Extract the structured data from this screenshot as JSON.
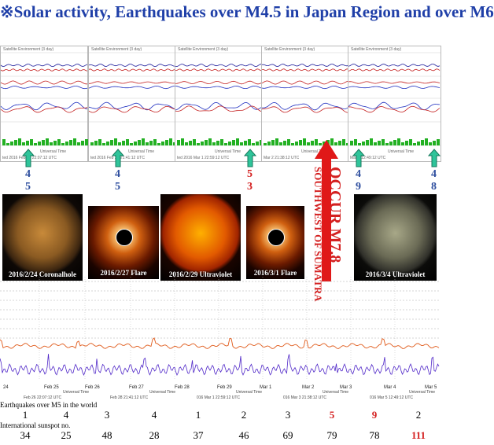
{
  "title": "※Solar activity, Earthquakes over M4.5 in Japan Region and over M6",
  "panels": [
    {
      "header": "Satellite Environment (3 day)",
      "footer": "ted 2016 Feb 24 22:07:12 UTC",
      "sub": "Universal Time"
    },
    {
      "header": "Satellite Environment (3 day)",
      "footer": "ted 2016 Feb 26 21:41:12 UTC",
      "sub": "Universal Time"
    },
    {
      "header": "Satellite Environment (3 day)",
      "footer": "ted 2016 Mar 1 22:59:12 UTC",
      "sub": "Universal Time"
    },
    {
      "header": "Satellite Environment (3 day)",
      "footer": "Mar 2 21:38:12 UTC",
      "sub": "Universal Time"
    },
    {
      "header": "Satellite Environment (3 day)",
      "footer": "Mar 5 12:49:12 UTC",
      "sub": "Universal Time"
    }
  ],
  "arrows": [
    {
      "top": "4",
      "bottom": "5",
      "top_red": false,
      "bottom_red": false
    },
    {
      "top": "4",
      "bottom": "5",
      "top_red": false,
      "bottom_red": false
    },
    {
      "top": "5",
      "bottom": "3",
      "top_red": true,
      "bottom_red": true
    },
    {
      "top": "4",
      "bottom": "9",
      "top_red": false,
      "bottom_red": false
    },
    {
      "top": "4",
      "bottom": "8",
      "top_red": false,
      "bottom_red": false
    }
  ],
  "thumbs": [
    {
      "caption": "2016/2/24 Coronalhole",
      "kind": "sun-gold"
    },
    {
      "caption": "2016/2/27 Flare",
      "kind": "flare"
    },
    {
      "caption": "2016/2/29 Ultraviolet",
      "kind": "sun-red"
    },
    {
      "caption": "2016/3/1 Flare",
      "kind": "flare"
    },
    {
      "caption": "2016/3/4 Ultraviolet",
      "kind": "sun-green"
    }
  ],
  "announcement": {
    "line1": "SOUTHWEST OF SUMATRA",
    "line2": "OCCUR M7.8"
  },
  "bottom_chart": {
    "dates": [
      "24",
      "Feb 25",
      "Feb 26",
      "Feb 27",
      "Feb 28",
      "Feb 29",
      "Mar 1",
      "Mar 2",
      "Mar 3",
      "Mar 4",
      "Mar 5"
    ],
    "axis_label": "Universal Time",
    "updates": [
      "Feb 26 22:07:12 UTC",
      "Feb 28 21:41:12 UTC",
      "016 Mar 1 22:59:12 UTC",
      "016 Mar 3 21:38:12 UTC",
      "016 Mar 5 12:49:12 UTC"
    ]
  },
  "earthquakes": {
    "label": "Earthquakes over M5 in the world",
    "values": [
      "1",
      "4",
      "3",
      "4",
      "1",
      "2",
      "3",
      "5",
      "9",
      "2"
    ],
    "red_flags": [
      false,
      false,
      false,
      false,
      false,
      false,
      false,
      true,
      true,
      false
    ]
  },
  "sunspots": {
    "label": "International sunspot no.",
    "values": [
      "34",
      "25",
      "48",
      "28",
      "37",
      "46",
      "69",
      "79",
      "78",
      "111"
    ],
    "red_flags": [
      false,
      false,
      false,
      false,
      false,
      false,
      false,
      false,
      false,
      true
    ]
  }
}
